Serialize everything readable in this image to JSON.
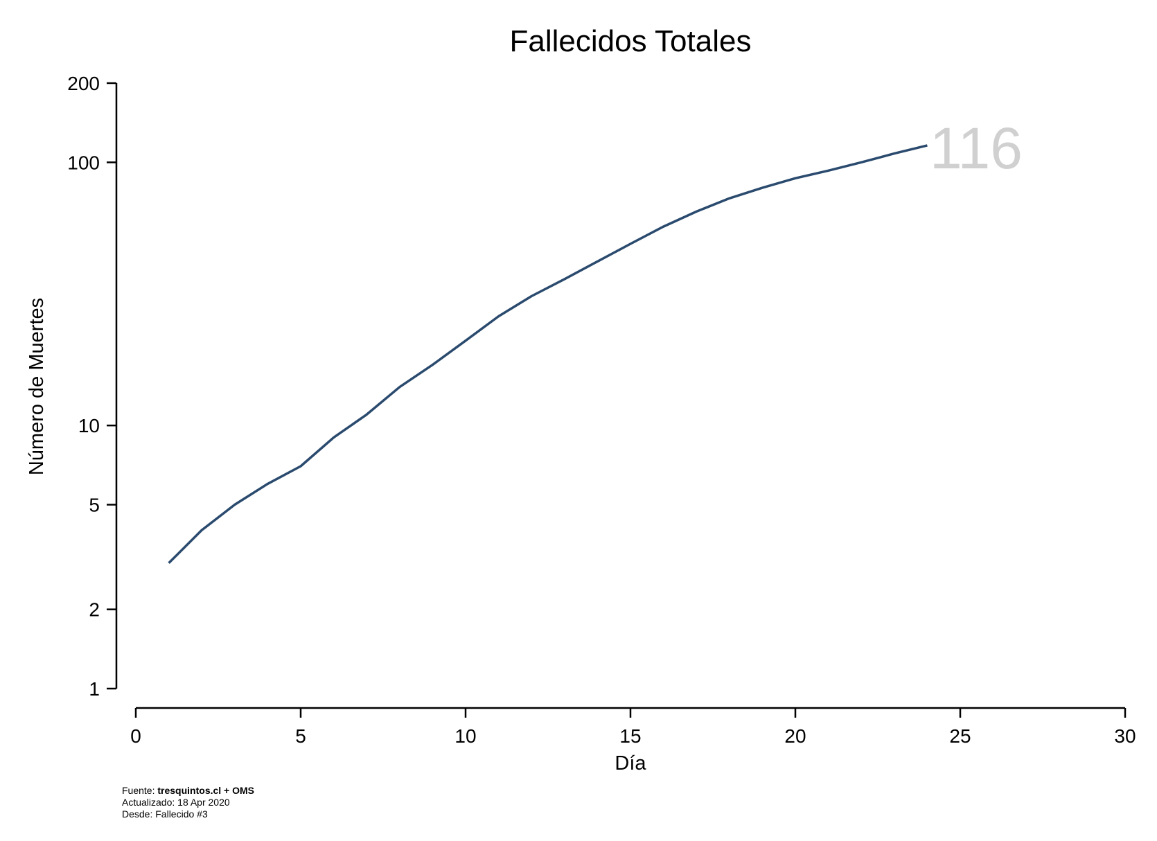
{
  "chart_data": {
    "type": "line",
    "title": "Fallecidos Totales",
    "xlabel": "Día",
    "ylabel": "Número de Muertes",
    "xlim": [
      0,
      30
    ],
    "ylim": [
      1,
      200
    ],
    "y_scale": "log",
    "x_ticks": [
      0,
      5,
      10,
      15,
      20,
      25,
      30
    ],
    "y_ticks": [
      1,
      2,
      5,
      10,
      100,
      200
    ],
    "grid": false,
    "line_color": "#2a4a6e",
    "label_color": "#d0d0d0",
    "series": [
      {
        "x": [
          1,
          2,
          3,
          4,
          5,
          6,
          7,
          8,
          9,
          10,
          11,
          12,
          13,
          14,
          15,
          16,
          17,
          18,
          19,
          20,
          21,
          22,
          23,
          24
        ],
        "y": [
          3,
          4,
          5,
          6,
          7,
          9,
          11,
          14,
          17,
          21,
          26,
          31,
          36,
          42,
          49,
          57,
          65,
          73,
          80,
          87,
          93,
          100,
          108,
          116
        ]
      }
    ],
    "end_label": "116"
  },
  "footer": {
    "source_prefix": "Fuente: ",
    "source_bold": "tresquintos.cl + OMS",
    "updated": "Actualizado: 18 Apr 2020",
    "since": "Desde: Fallecido #3"
  }
}
